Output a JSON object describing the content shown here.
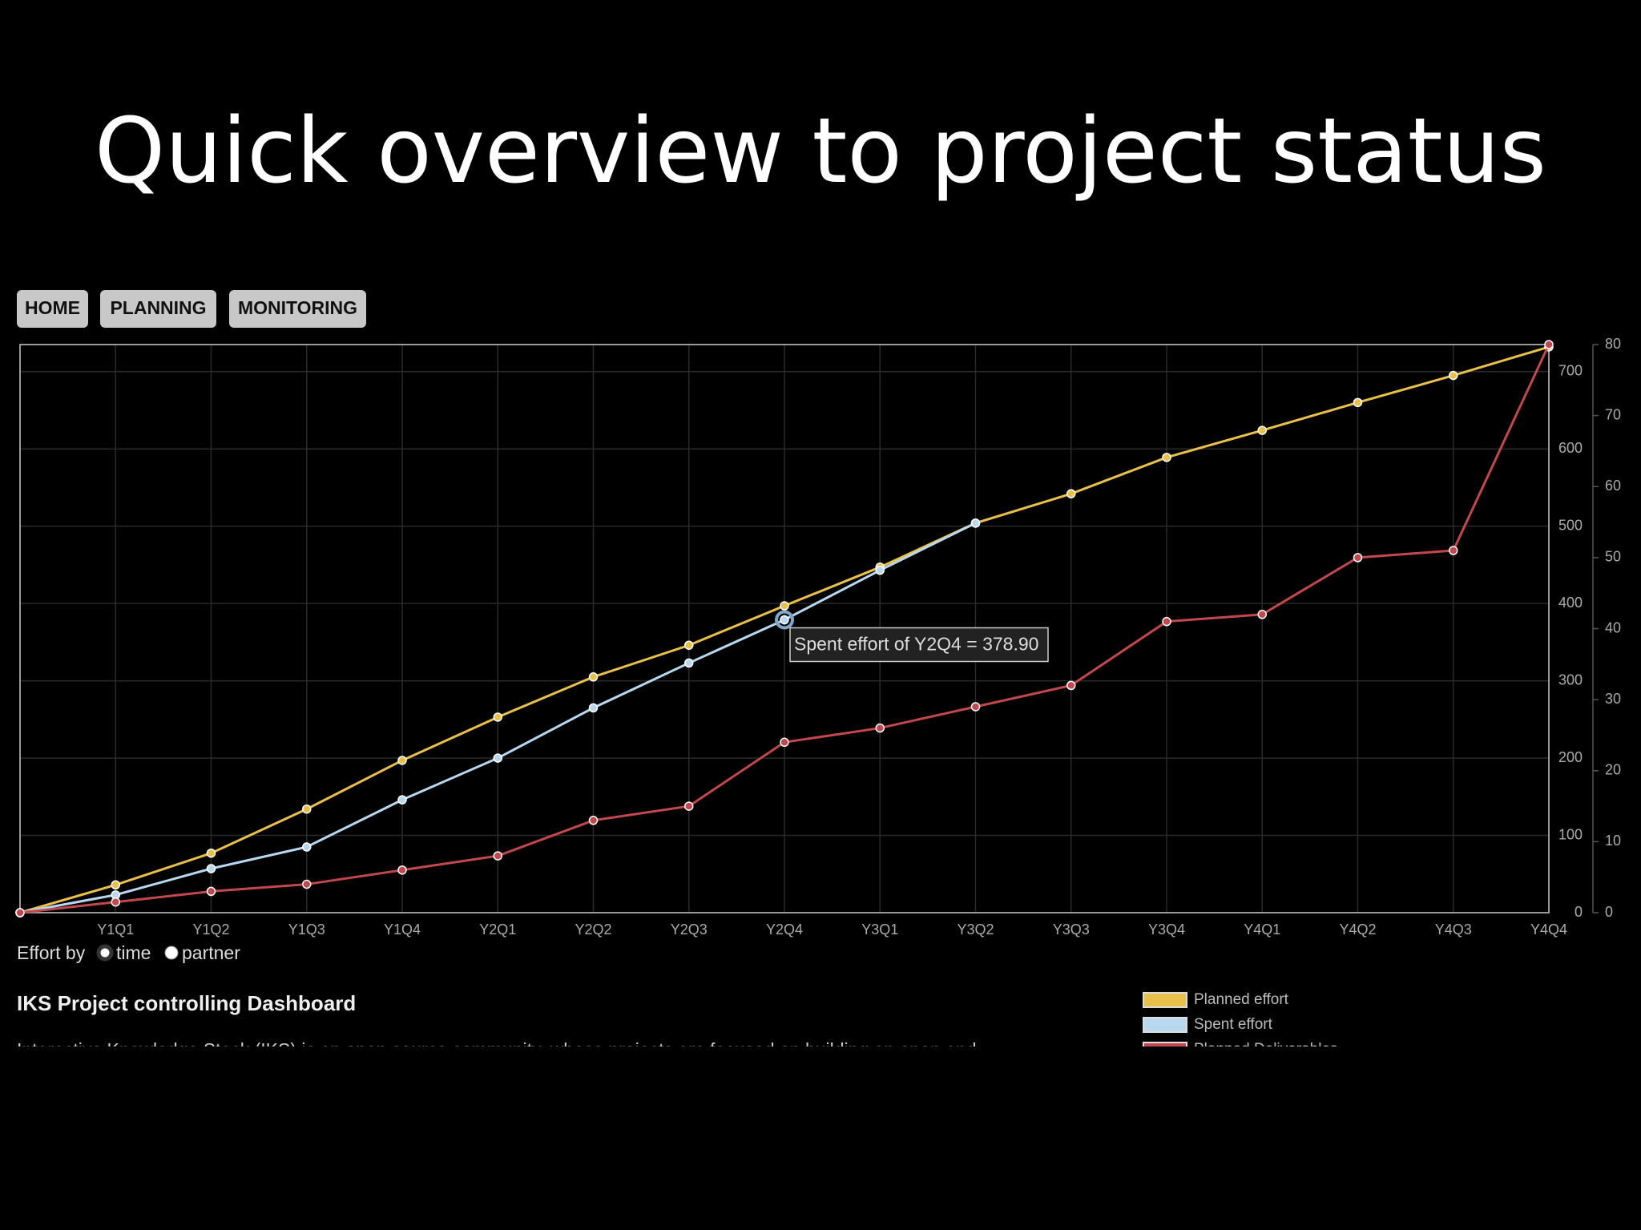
{
  "title": "Quick overview to project status",
  "nav": [
    "HOME",
    "PLANNING",
    "MONITORING"
  ],
  "chart_data": {
    "type": "line",
    "categories": [
      null,
      "Y1Q1",
      "Y1Q2",
      "Y1Q3",
      "Y1Q4",
      "Y2Q1",
      "Y2Q2",
      "Y2Q3",
      "Y2Q4",
      "Y3Q1",
      "Y3Q2",
      "Y3Q3",
      "Y3Q4",
      "Y4Q1",
      "Y4Q2",
      "Y4Q3",
      "Y4Q4"
    ],
    "series": [
      {
        "name": "Planned effort",
        "color": "#e8c04a",
        "values": [
          0,
          36,
          77,
          134,
          197,
          253,
          305,
          346,
          397,
          447,
          504,
          542,
          589,
          624,
          660,
          695,
          732
        ]
      },
      {
        "name": "Spent effort",
        "color": "#b8d8f0",
        "values": [
          0,
          23,
          57,
          85,
          146,
          200,
          265,
          323,
          378.9,
          443,
          504,
          null,
          null,
          null,
          null,
          null,
          null
        ]
      },
      {
        "name": "Planned Deliverables",
        "color": "#c0484e",
        "axis": "y2",
        "values": [
          0,
          1.5,
          3,
          4,
          6,
          8,
          13,
          15,
          24,
          26,
          29,
          32,
          41,
          42,
          50,
          51,
          80
        ]
      }
    ],
    "ylim": [
      0,
      735
    ],
    "yticks": [
      0,
      100,
      200,
      300,
      400,
      500,
      600,
      700
    ],
    "y2lim": [
      0,
      80
    ],
    "y2ticks": [
      0,
      10,
      20,
      30,
      40,
      50,
      60,
      70,
      80
    ],
    "grid": true,
    "annotation": "Spent effort of Y2Q4 = 378.90"
  },
  "controls": {
    "label": "Effort by",
    "options": [
      "time",
      "partner"
    ]
  },
  "dashboard": {
    "heading": "IKS Project controlling Dashboard",
    "text": "Interactive Knowledge Stack (IKS) is an open source community, whose projects are focused on building an open and"
  }
}
